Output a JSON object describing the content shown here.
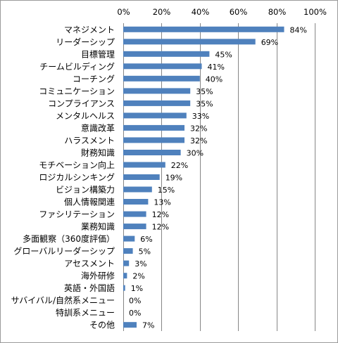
{
  "chart_data": {
    "type": "bar",
    "orientation": "horizontal",
    "categories": [
      "マネジメント",
      "リーダーシップ",
      "目標管理",
      "チームビルディング",
      "コーチング",
      "コミュニケーション",
      "コンプライアンス",
      "メンタルヘルス",
      "意識改革",
      "ハラスメント",
      "財務知識",
      "モチベーション向上",
      "ロジカルシンキング",
      "ビジョン構築力",
      "個人情報関連",
      "ファシリテーション",
      "業務知識",
      "多面観察（360度評価）",
      "グローバルリーダーシップ",
      "アセスメント",
      "海外研修",
      "英語・外国語",
      "サバイバル/自然系メニュー",
      "特訓系メニュー",
      "その他"
    ],
    "values": [
      84,
      69,
      45,
      41,
      40,
      35,
      35,
      33,
      32,
      32,
      30,
      22,
      19,
      15,
      13,
      12,
      12,
      6,
      5,
      3,
      2,
      1,
      0,
      0,
      7
    ],
    "value_labels": [
      "84%",
      "69%",
      "45%",
      "41%",
      "40%",
      "35%",
      "35%",
      "33%",
      "32%",
      "32%",
      "30%",
      "22%",
      "19%",
      "15%",
      "13%",
      "12%",
      "12%",
      "6%",
      "5%",
      "3%",
      "2%",
      "1%",
      "0%",
      "0%",
      "7%"
    ],
    "xlim": [
      0,
      100
    ],
    "ticks": [
      0,
      20,
      40,
      60,
      80,
      100
    ],
    "tick_labels": [
      "0%",
      "20%",
      "40%",
      "60%",
      "80%",
      "100%"
    ],
    "grid": true,
    "bar_color": "#4f81bd",
    "grid_color": "#868686"
  }
}
